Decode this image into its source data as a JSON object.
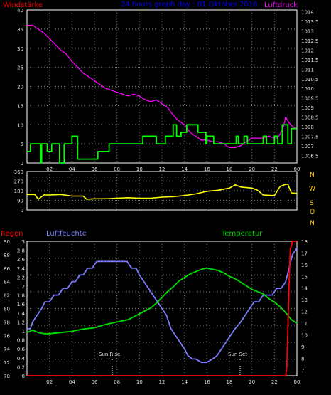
{
  "header": {
    "left_label": "Windstärke",
    "center_title": "24 hours graph day : 01 Oktober 2016",
    "right_label": "Luftdruck"
  },
  "middle_panel": {
    "direction_labels": [
      "N",
      "W",
      "S",
      "O",
      "N"
    ]
  },
  "bottom_header": {
    "rain_label": "Regen",
    "humidity_label": "Luftfeuchte",
    "temperature_label": "Temperatur"
  },
  "annotations": {
    "sunrise": "Sun Rise",
    "sunset": "Sun Set"
  },
  "colors": {
    "background": "#000000",
    "grid": "#808080",
    "wind_speed": "#00ff00",
    "pressure": "#ff00ff",
    "wind_direction": "#ffff00",
    "humidity": "#7b7bff",
    "temperature": "#00dd00",
    "rain": "#ff0000",
    "title": "#0000ff",
    "red_label": "#ff0000",
    "direction_labels": "#ffcc00"
  },
  "chart_data": [
    {
      "id": "wind_pressure",
      "type": "line",
      "x_tick_labels": [
        "02",
        "04",
        "06",
        "08",
        "10",
        "12",
        "14",
        "16",
        "18",
        "20",
        "22",
        "00"
      ],
      "x_range": [
        0,
        24
      ],
      "y_left_ticks": [
        "40",
        "35",
        "30",
        "25",
        "20",
        "15",
        "10",
        "5",
        "0"
      ],
      "y_left_range": [
        0,
        40
      ],
      "y_right_ticks": [
        "1014",
        "1013.5",
        "1013",
        "1012.5",
        "1012",
        "1011.5",
        "1011",
        "1010.5",
        "1010",
        "1009.5",
        "1009",
        "1008.5",
        "1008",
        "1007.5",
        "1007",
        "1006.5"
      ],
      "y_right_range": [
        1006.1,
        1014.1
      ],
      "series": [
        {
          "axis": "left",
          "color": "#00ff00",
          "x": [
            0,
            0.3,
            0.3,
            1.2,
            1.2,
            1.3,
            1.3,
            1.8,
            1.8,
            2.2,
            2.2,
            2.9,
            2.9,
            3.3,
            3.3,
            4,
            4,
            4.5,
            4.5,
            6.3,
            6.3,
            7.3,
            7.3,
            8,
            8,
            10.3,
            10.3,
            11.5,
            11.5,
            12.3,
            12.3,
            13,
            13,
            13.3,
            13.3,
            13.7,
            13.7,
            14.2,
            14.2,
            15.2,
            15.2,
            15.9,
            15.9,
            16,
            16,
            16.6,
            16.6,
            18.6,
            18.6,
            18.8,
            18.8,
            19.3,
            19.3,
            19.6,
            19.6,
            21,
            21,
            21.3,
            21.3,
            22,
            22,
            22.3,
            22.3,
            22.7,
            22.7,
            23.2,
            23.2,
            23.5,
            23.5,
            24
          ],
          "y": [
            3,
            3,
            5,
            5,
            0,
            0,
            5,
            5,
            3,
            3,
            5,
            5,
            0,
            0,
            5,
            5,
            7,
            7,
            1,
            1,
            3,
            3,
            5,
            5,
            5,
            5,
            7,
            7,
            5,
            5,
            7,
            7,
            10,
            10,
            7,
            7,
            8,
            8,
            10,
            10,
            8,
            8,
            5,
            5,
            7,
            7,
            5,
            5,
            7,
            7,
            5,
            5,
            7,
            7,
            5,
            5,
            7,
            7,
            5,
            5,
            7,
            7,
            5,
            5,
            10,
            10,
            5,
            5,
            9,
            9
          ]
        },
        {
          "axis": "right",
          "color": "#ff00ff",
          "x": [
            0,
            0.5,
            1,
            1.5,
            2,
            2.5,
            3,
            3.5,
            4,
            4.5,
            5,
            5.5,
            6,
            6.5,
            7,
            7.5,
            8,
            8.5,
            9,
            9.5,
            10,
            10.5,
            11,
            11.5,
            12,
            12.5,
            13,
            13.5,
            14,
            14.5,
            15,
            15.5,
            16,
            16.5,
            17,
            17.5,
            18,
            18.5,
            19,
            19.5,
            20,
            20.5,
            21,
            21.5,
            22,
            22.2,
            22.5,
            22.8,
            23,
            23.3,
            23.6,
            24
          ],
          "y": [
            1013.3,
            1013.3,
            1013.1,
            1012.9,
            1012.6,
            1012.3,
            1012.0,
            1011.8,
            1011.4,
            1011.1,
            1010.8,
            1010.6,
            1010.4,
            1010.2,
            1010.0,
            1009.9,
            1009.8,
            1009.7,
            1009.6,
            1009.7,
            1009.6,
            1009.4,
            1009.3,
            1009.4,
            1009.2,
            1009.0,
            1008.6,
            1008.3,
            1008.1,
            1007.7,
            1007.5,
            1007.3,
            1007.3,
            1007.2,
            1007.2,
            1007.1,
            1006.9,
            1006.9,
            1007.0,
            1007.2,
            1007.4,
            1007.4,
            1007.4,
            1007.5,
            1007.4,
            1007.4,
            1007.6,
            1008.0,
            1008.5,
            1008.2,
            1008.0,
            1007.9
          ]
        }
      ]
    },
    {
      "id": "wind_direction",
      "type": "line",
      "x_range": [
        0,
        24
      ],
      "y_ticks": [
        "360",
        "270",
        "180",
        "90",
        "0"
      ],
      "y_range": [
        0,
        360
      ],
      "series": [
        {
          "color": "#ffff00",
          "x": [
            0,
            0.7,
            1,
            1.5,
            2,
            3,
            4,
            5,
            5.3,
            6,
            7,
            8,
            9,
            10,
            11,
            12,
            13,
            14,
            15,
            16,
            17,
            18,
            18.5,
            19,
            20,
            20.5,
            21,
            22,
            22.5,
            23,
            23.2,
            23.5,
            24
          ],
          "y": [
            145,
            145,
            100,
            140,
            140,
            145,
            130,
            130,
            100,
            105,
            105,
            110,
            115,
            110,
            110,
            120,
            125,
            135,
            150,
            175,
            185,
            205,
            235,
            215,
            205,
            185,
            140,
            135,
            220,
            240,
            240,
            160,
            155
          ]
        }
      ]
    },
    {
      "id": "rain_humidity_temperature",
      "type": "line",
      "x_tick_labels": [
        "02",
        "04",
        "06",
        "08",
        "10",
        "12",
        "14",
        "16",
        "18",
        "20",
        "22",
        "00"
      ],
      "x_range": [
        0,
        24
      ],
      "y_rain_ticks": [
        "3",
        "2.8",
        "2.6",
        "2.4",
        "2.2",
        "2",
        "1.8",
        "1.6",
        "1.4",
        "1.2",
        "1",
        "0.8",
        "0.6",
        "0.4",
        "0.2",
        "0"
      ],
      "y_rain_range": [
        0,
        3.0
      ],
      "y_humidity_ticks": [
        "90",
        "88",
        "86",
        "84",
        "82",
        "80",
        "78",
        "76",
        "74",
        "72",
        "70"
      ],
      "y_humidity_range": [
        70,
        90
      ],
      "y_temperature_ticks": [
        "18",
        "17",
        "16",
        "15",
        "14",
        "13",
        "12",
        "11",
        "10",
        "9",
        "8",
        "7"
      ],
      "y_temperature_range": [
        6.5,
        18.0
      ],
      "series": [
        {
          "name": "Luftfeuchte",
          "axis": "humidity",
          "color": "#7b7bff",
          "x": [
            0,
            0.3,
            0.5,
            0.9,
            1.3,
            1.6,
            2.0,
            2.4,
            2.8,
            3.2,
            3.6,
            4.0,
            4.3,
            4.7,
            5.0,
            5.4,
            5.8,
            6.2,
            6.5,
            6.9,
            7.3,
            7.7,
            8.1,
            8.5,
            8.9,
            9.3,
            9.7,
            10.0,
            10.4,
            10.8,
            11.2,
            11.6,
            12.0,
            12.4,
            12.8,
            13.2,
            13.6,
            14.0,
            14.3,
            14.7,
            15.0,
            15.5,
            16.0,
            16.5,
            16.9,
            17.3,
            17.7,
            18.1,
            18.5,
            19.0,
            19.4,
            19.8,
            20.2,
            20.6,
            21.0,
            21.4,
            21.8,
            22.2,
            22.6,
            23.0,
            23.3,
            23.6,
            24.0
          ],
          "y": [
            77,
            77,
            78,
            79,
            80,
            81,
            81,
            82,
            82,
            83,
            83,
            84,
            84,
            85,
            85,
            86,
            86,
            87,
            87,
            87,
            87,
            87,
            87,
            87,
            87,
            86,
            86,
            85,
            84,
            83,
            82,
            81,
            80,
            79,
            77,
            76,
            75,
            74,
            73,
            72.5,
            72.5,
            72,
            72,
            72.5,
            73,
            74,
            75,
            76,
            77,
            78,
            79,
            80,
            81,
            81,
            82,
            82,
            82,
            83,
            83,
            84,
            86,
            88,
            89
          ]
        },
        {
          "name": "Temperatur",
          "axis": "temperature",
          "color": "#00dd00",
          "x": [
            0,
            0.5,
            1,
            1.5,
            2,
            3,
            4,
            5,
            6,
            7,
            8,
            9,
            10,
            11,
            11.5,
            12,
            12.5,
            13,
            13.5,
            14,
            14.5,
            15,
            15.5,
            16,
            16.5,
            17,
            17.5,
            18,
            18.5,
            19,
            19.5,
            20,
            20.5,
            21,
            21.5,
            22,
            22.5,
            23,
            23.5,
            24
          ],
          "y": [
            10.2,
            10.4,
            10.2,
            10.1,
            10.1,
            10.2,
            10.3,
            10.5,
            10.6,
            10.9,
            11.1,
            11.3,
            11.8,
            12.3,
            12.7,
            13.2,
            13.7,
            14.1,
            14.6,
            14.9,
            15.2,
            15.4,
            15.6,
            15.7,
            15.6,
            15.5,
            15.3,
            15.0,
            14.8,
            14.5,
            14.2,
            13.9,
            13.7,
            13.5,
            13.1,
            12.8,
            12.4,
            11.9,
            11.3,
            11.0
          ]
        },
        {
          "name": "Regen",
          "axis": "rain",
          "color": "#ff0000",
          "x": [
            0,
            23.0,
            23.1,
            23.3,
            23.4,
            23.5,
            23.6,
            23.7,
            24.0
          ],
          "y": [
            0,
            0,
            0.2,
            2.0,
            2.8,
            2.9,
            3.0,
            3.0,
            3.0
          ]
        }
      ]
    }
  ]
}
